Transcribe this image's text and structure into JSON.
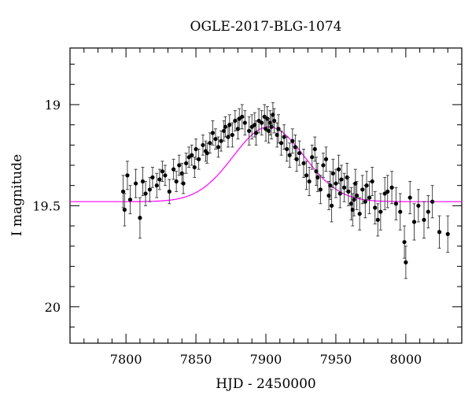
{
  "chart_data": {
    "type": "scatter",
    "title": "OGLE-2017-BLG-1074",
    "xlabel": "HJD - 2450000",
    "ylabel": "I magnitude",
    "xlim": [
      7760,
      8040
    ],
    "ylim": [
      20.18,
      18.72
    ],
    "y_inverted": true,
    "xticks": [
      7800,
      7850,
      7900,
      7950,
      8000
    ],
    "yticks": [
      19,
      19.5,
      20
    ],
    "grid": false,
    "colors": {
      "points": "#000000",
      "model": "#ff00ff",
      "axes": "#000000"
    },
    "series": [
      {
        "type": "errorbar",
        "x": [
          7798,
          7799,
          7801,
          7803,
          7807,
          7810,
          7812,
          7814,
          7817,
          7819,
          7822,
          7824,
          7826,
          7828,
          7831,
          7834,
          7836,
          7838,
          7840,
          7841,
          7843,
          7845,
          7847,
          7849,
          7850,
          7852,
          7855,
          7857,
          7858,
          7860,
          7862,
          7864,
          7866,
          7868,
          7870,
          7871,
          7873,
          7874,
          7876,
          7878,
          7880,
          7881,
          7883,
          7885,
          7888,
          7890,
          7892,
          7893,
          7895,
          7897,
          7899,
          7900,
          7901,
          7902,
          7903,
          7904,
          7905,
          7906,
          7908,
          7909,
          7911,
          7913,
          7915,
          7917,
          7919,
          7921,
          7922,
          7924,
          7927,
          7929,
          7931,
          7933,
          7935,
          7936,
          7937,
          7939,
          7941,
          7943,
          7945,
          7946,
          7947,
          7948,
          7950,
          7952,
          7953,
          7954,
          7956,
          7958,
          7959,
          7961,
          7962,
          7963,
          7964,
          7965,
          7967,
          7969,
          7971,
          7972,
          7974,
          7976,
          7978,
          7980,
          7982,
          7985,
          7987,
          7990,
          7993,
          7996,
          7999,
          8000,
          8003,
          8006,
          8009,
          8013,
          8016,
          8019,
          8024,
          8030
        ],
        "y": [
          19.43,
          19.52,
          19.35,
          19.47,
          19.39,
          19.56,
          19.38,
          19.44,
          19.42,
          19.36,
          19.4,
          19.37,
          19.33,
          19.35,
          19.43,
          19.32,
          19.38,
          19.3,
          19.34,
          19.39,
          19.29,
          19.26,
          19.25,
          19.31,
          19.22,
          19.27,
          19.2,
          19.23,
          19.24,
          19.19,
          19.14,
          19.17,
          19.21,
          19.18,
          19.13,
          19.11,
          19.16,
          19.1,
          19.15,
          19.08,
          19.12,
          19.07,
          19.06,
          19.09,
          19.13,
          19.11,
          19.1,
          19.14,
          19.08,
          19.09,
          19.06,
          19.12,
          19.07,
          19.13,
          19.09,
          19.11,
          19.05,
          19.08,
          19.15,
          19.12,
          19.19,
          19.16,
          19.22,
          19.25,
          19.18,
          19.21,
          19.27,
          19.24,
          19.29,
          19.35,
          19.38,
          19.26,
          19.22,
          19.33,
          19.36,
          19.42,
          19.3,
          19.27,
          19.45,
          19.4,
          19.5,
          19.34,
          19.39,
          19.32,
          19.44,
          19.37,
          19.41,
          19.36,
          19.43,
          19.49,
          19.52,
          19.47,
          19.39,
          19.45,
          19.54,
          19.42,
          19.48,
          19.4,
          19.46,
          19.38,
          19.51,
          19.57,
          19.53,
          19.44,
          19.43,
          19.41,
          19.49,
          19.53,
          19.68,
          19.78,
          19.46,
          19.58,
          19.5,
          19.57,
          19.53,
          19.48,
          19.63,
          19.64
        ],
        "err": [
          0.08,
          0.08,
          0.07,
          0.07,
          0.07,
          0.1,
          0.07,
          0.06,
          0.06,
          0.05,
          0.06,
          0.05,
          0.05,
          0.05,
          0.06,
          0.05,
          0.05,
          0.05,
          0.05,
          0.05,
          0.05,
          0.05,
          0.05,
          0.05,
          0.05,
          0.05,
          0.05,
          0.05,
          0.05,
          0.05,
          0.06,
          0.05,
          0.05,
          0.05,
          0.05,
          0.05,
          0.05,
          0.05,
          0.06,
          0.05,
          0.05,
          0.05,
          0.06,
          0.06,
          0.07,
          0.06,
          0.06,
          0.06,
          0.06,
          0.06,
          0.06,
          0.06,
          0.06,
          0.06,
          0.06,
          0.06,
          0.06,
          0.06,
          0.06,
          0.07,
          0.06,
          0.06,
          0.06,
          0.06,
          0.06,
          0.06,
          0.06,
          0.06,
          0.07,
          0.07,
          0.07,
          0.06,
          0.06,
          0.07,
          0.07,
          0.07,
          0.06,
          0.06,
          0.07,
          0.07,
          0.08,
          0.07,
          0.07,
          0.07,
          0.07,
          0.07,
          0.07,
          0.07,
          0.07,
          0.08,
          0.08,
          0.08,
          0.07,
          0.07,
          0.08,
          0.07,
          0.08,
          0.07,
          0.08,
          0.07,
          0.08,
          0.08,
          0.09,
          0.08,
          0.08,
          0.08,
          0.08,
          0.09,
          0.08,
          0.08,
          0.08,
          0.09,
          0.08,
          0.09,
          0.08,
          0.08,
          0.08,
          0.09
        ]
      },
      {
        "type": "model_curve",
        "baseline": 19.48,
        "peak_mag": 19.11,
        "t0": 7902,
        "tE": 34
      }
    ]
  }
}
